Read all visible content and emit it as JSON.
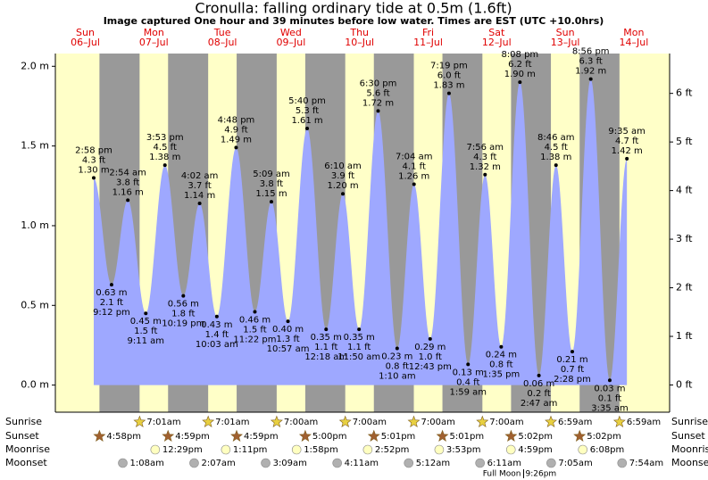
{
  "title": "Cronulla: falling  ordinary tide at 0.5m (1.6ft)",
  "subtitle": "Image captured One hour and 39 minutes before low water. Times are EST (UTC +10.0hrs)",
  "chart_data": {
    "type": "tide",
    "ylim": [
      -0.17,
      2.08
    ],
    "yticks": [
      {
        "value": 0,
        "label": "0.0 m"
      },
      {
        "value": 0.5,
        "label": "0.5 m"
      },
      {
        "value": 1,
        "label": "1.0 m"
      },
      {
        "value": 1.5,
        "label": "1.5 m"
      },
      {
        "value": 2,
        "label": "2.0 m"
      }
    ],
    "y2lim": [
      -0.56,
      6.82
    ],
    "y2ticks": [
      {
        "value": 0,
        "label": "0 ft"
      },
      {
        "value": 1,
        "label": "1 ft"
      },
      {
        "value": 2,
        "label": "2 ft"
      },
      {
        "value": 3,
        "label": "3 ft"
      },
      {
        "value": 4,
        "label": "4 ft"
      },
      {
        "value": 5,
        "label": "5 ft"
      },
      {
        "value": 6,
        "label": "6 ft"
      }
    ],
    "row_labels": {
      "sunrise": "Sunrise",
      "sunset": "Sunset",
      "moonrise": "Moonrise",
      "moonset": "Moonset"
    },
    "days": [
      {
        "name": "Sun",
        "date": "06–Jul",
        "sunset": "4:58pm",
        "tides": [
          {
            "time": "2:58 pm",
            "ft_label": "4.3 ft",
            "m": 1.3,
            "m_label": "1.30 m"
          },
          {
            "time": "9:12 pm",
            "ft_label": "2.1 ft",
            "m": 0.63,
            "m_label": "0.63 m"
          }
        ]
      },
      {
        "name": "Mon",
        "date": "07–Jul",
        "sunrise": "7:01am",
        "sunset": "4:59pm",
        "moonrise": "12:29pm",
        "moonset": "1:08am",
        "tides": [
          {
            "time": "2:54 am",
            "ft_label": "3.8 ft",
            "m": 1.16,
            "m_label": "1.16 m"
          },
          {
            "time": "9:11 am",
            "ft_label": "1.5 ft",
            "m": 0.45,
            "m_label": "0.45 m"
          },
          {
            "time": "3:53 pm",
            "ft_label": "4.5 ft",
            "m": 1.38,
            "m_label": "1.38 m"
          },
          {
            "time": "10:19 pm",
            "ft_label": "1.8 ft",
            "m": 0.56,
            "m_label": "0.56 m"
          }
        ]
      },
      {
        "name": "Tue",
        "date": "08–Jul",
        "sunrise": "7:01am",
        "sunset": "4:59pm",
        "moonrise": "1:11pm",
        "moonset": "2:07am",
        "tides": [
          {
            "time": "4:02 am",
            "ft_label": "3.7 ft",
            "m": 1.14,
            "m_label": "1.14 m"
          },
          {
            "time": "10:03 am",
            "ft_label": "1.4 ft",
            "m": 0.43,
            "m_label": "0.43 m"
          },
          {
            "time": "4:48 pm",
            "ft_label": "4.9 ft",
            "m": 1.49,
            "m_label": "1.49 m"
          },
          {
            "time": "11:22 pm",
            "ft_label": "1.5 ft",
            "m": 0.46,
            "m_label": "0.46 m"
          }
        ]
      },
      {
        "name": "Wed",
        "date": "09–Jul",
        "sunrise": "7:00am",
        "sunset": "5:00pm",
        "moonrise": "1:58pm",
        "moonset": "3:09am",
        "tides": [
          {
            "time": "5:09 am",
            "ft_label": "3.8 ft",
            "m": 1.15,
            "m_label": "1.15 m"
          },
          {
            "time": "10:57 am",
            "ft_label": "1.3 ft",
            "m": 0.4,
            "m_label": "0.40 m"
          },
          {
            "time": "5:40 pm",
            "ft_label": "5.3 ft",
            "m": 1.61,
            "m_label": "1.61 m"
          }
        ]
      },
      {
        "name": "Thu",
        "date": "10–Jul",
        "sunrise": "7:00am",
        "sunset": "5:01pm",
        "moonrise": "2:52pm",
        "moonset": "4:11am",
        "tides": [
          {
            "time": "12:18 am",
            "ft_label": "1.1 ft",
            "m": 0.35,
            "m_label": "0.35 m"
          },
          {
            "time": "6:10 am",
            "ft_label": "3.9 ft",
            "m": 1.2,
            "m_label": "1.20 m"
          },
          {
            "time": "11:50 am",
            "ft_label": "1.1 ft",
            "m": 0.35,
            "m_label": "0.35 m"
          },
          {
            "time": "6:30 pm",
            "ft_label": "5.6 ft",
            "m": 1.72,
            "m_label": "1.72 m"
          }
        ]
      },
      {
        "name": "Fri",
        "date": "11–Jul",
        "sunrise": "7:00am",
        "sunset": "5:01pm",
        "moonrise": "3:53pm",
        "moonset": "5:12am",
        "tides": [
          {
            "time": "1:10 am",
            "ft_label": "0.8 ft",
            "m": 0.23,
            "m_label": "0.23 m"
          },
          {
            "time": "7:04 am",
            "ft_label": "4.1 ft",
            "m": 1.26,
            "m_label": "1.26 m"
          },
          {
            "time": "12:43 pm",
            "ft_label": "1.0 ft",
            "m": 0.29,
            "m_label": "0.29 m"
          },
          {
            "time": "7:19 pm",
            "ft_label": "6.0 ft",
            "m": 1.83,
            "m_label": "1.83 m"
          }
        ]
      },
      {
        "name": "Sat",
        "date": "12–Jul",
        "sunrise": "7:00am",
        "sunset": "5:02pm",
        "moonrise": "4:59pm",
        "moonset": "6:11am",
        "full_moon": {
          "label": "Full Moon",
          "time": "9:26pm"
        },
        "tides": [
          {
            "time": "1:59 am",
            "ft_label": "0.4 ft",
            "m": 0.13,
            "m_label": "0.13 m"
          },
          {
            "time": "7:56 am",
            "ft_label": "4.3 ft",
            "m": 1.32,
            "m_label": "1.32 m"
          },
          {
            "time": "1:35 pm",
            "ft_label": "0.8 ft",
            "m": 0.24,
            "m_label": "0.24 m"
          },
          {
            "time": "8:08 pm",
            "ft_label": "6.2 ft",
            "m": 1.9,
            "m_label": "1.90 m"
          }
        ]
      },
      {
        "name": "Sun",
        "date": "13–Jul",
        "sunrise": "6:59am",
        "sunset": "5:02pm",
        "moonrise": "6:08pm",
        "moonset": "7:05am",
        "tides": [
          {
            "time": "2:47 am",
            "ft_label": "0.2 ft",
            "m": 0.06,
            "m_label": "0.06 m"
          },
          {
            "time": "8:46 am",
            "ft_label": "4.5 ft",
            "m": 1.38,
            "m_label": "1.38 m"
          },
          {
            "time": "2:28 pm",
            "ft_label": "0.7 ft",
            "m": 0.21,
            "m_label": "0.21 m"
          },
          {
            "time": "8:56 pm",
            "ft_label": "6.3 ft",
            "m": 1.92,
            "m_label": "1.92 m"
          }
        ]
      },
      {
        "name": "Mon",
        "date": "14–Jul",
        "sunrise": "6:59am",
        "moonset": "7:54am",
        "tides": [
          {
            "time": "3:35 am",
            "ft_label": "0.1 ft",
            "m": 0.03,
            "m_label": "0.03 m"
          },
          {
            "time": "9:35 am",
            "ft_label": "4.7 ft",
            "m": 1.42,
            "m_label": "1.42 m"
          }
        ]
      }
    ]
  }
}
